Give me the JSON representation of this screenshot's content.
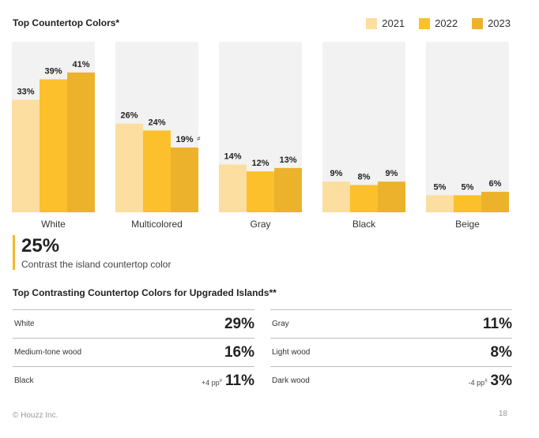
{
  "title": "Top Countertop Colors*",
  "colors": {
    "y2021": "#fcdea0",
    "y2022": "#fcc02c",
    "y2023": "#edb22b",
    "panel": "#f2f2f2",
    "accent": "#f5b827"
  },
  "chart_data": {
    "type": "bar",
    "categories": [
      "White",
      "Multicolored",
      "Gray",
      "Black",
      "Beige"
    ],
    "series": [
      {
        "name": "2021",
        "values": [
          33,
          26,
          14,
          9,
          5
        ]
      },
      {
        "name": "2022",
        "values": [
          39,
          24,
          12,
          8,
          5
        ]
      },
      {
        "name": "2023",
        "values": [
          41,
          19,
          13,
          9,
          6
        ]
      }
    ],
    "value_suffix": "%",
    "annotations": [
      {
        "category": "Multicolored",
        "series": "2023",
        "text": "#"
      }
    ],
    "ylim": [
      0,
      50
    ],
    "grid": false,
    "legend_position": "top-right"
  },
  "callout": {
    "value": "25%",
    "text": "Contrast the island countertop color"
  },
  "table": {
    "title": "Top Contrasting Countertop Colors for Upgraded Islands**",
    "left": [
      {
        "label": "White",
        "delta": "",
        "value": "29%"
      },
      {
        "label": "Medium-tone wood",
        "delta": "",
        "value": "16%"
      },
      {
        "label": "Black",
        "delta": "+4 pp",
        "value": "11%"
      }
    ],
    "right": [
      {
        "label": "Gray",
        "delta": "",
        "value": "11%"
      },
      {
        "label": "Light wood",
        "delta": "",
        "value": "8%"
      },
      {
        "label": "Dark wood",
        "delta": "-4 pp",
        "value": "3%"
      }
    ],
    "delta_mark": "#"
  },
  "footer": {
    "copyright": "© Houzz Inc.",
    "page": "18"
  }
}
